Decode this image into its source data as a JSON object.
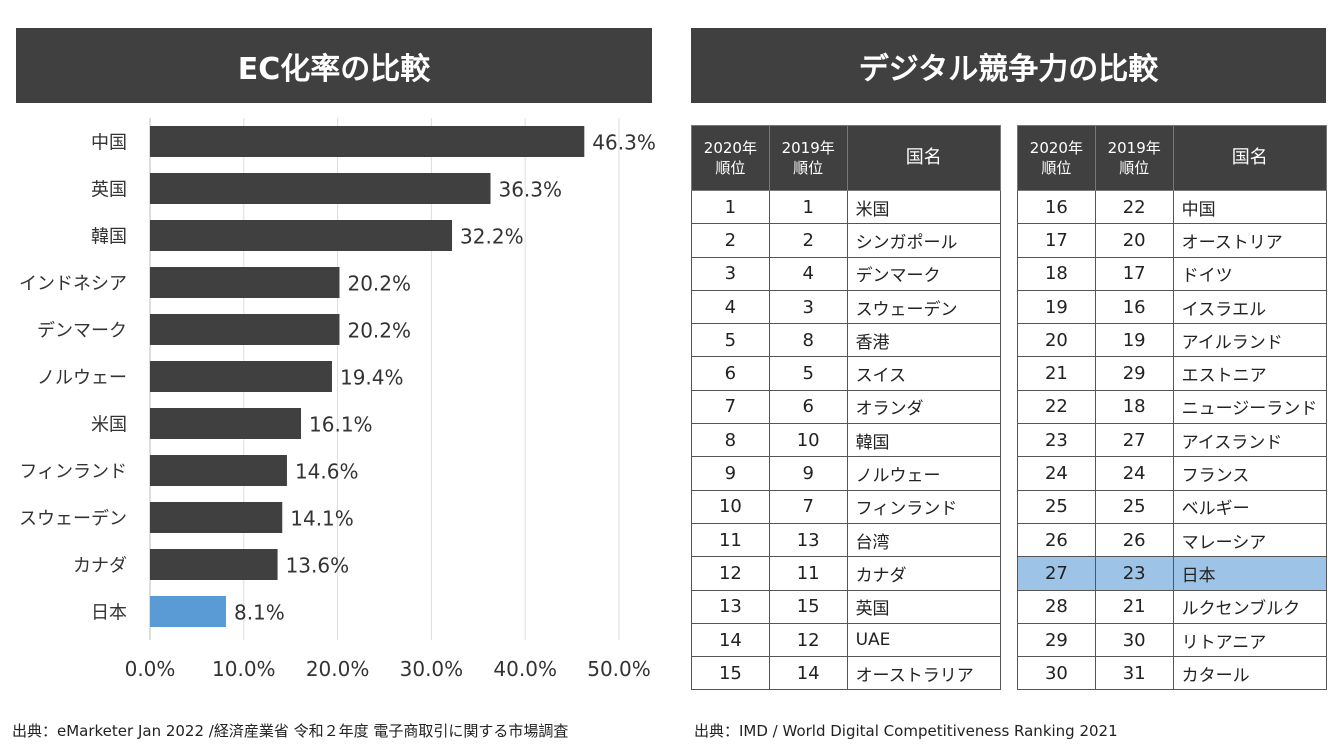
{
  "left_title": "EC化率の比較",
  "right_title": "デジタル競争力の比較",
  "chart_data": {
    "type": "bar",
    "orientation": "horizontal",
    "title": "EC化率の比較",
    "categories": [
      "中国",
      "英国",
      "韓国",
      "インドネシア",
      "デンマーク",
      "ノルウェー",
      "米国",
      "フィンランド",
      "スウェーデン",
      "カナダ",
      "日本"
    ],
    "values": [
      46.3,
      36.3,
      32.2,
      20.2,
      20.2,
      19.4,
      16.1,
      14.6,
      14.1,
      13.6,
      8.1
    ],
    "labels": [
      "46.3%",
      "36.3%",
      "32.2%",
      "20.2%",
      "20.2%",
      "19.4%",
      "16.1%",
      "14.6%",
      "14.1%",
      "13.6%",
      "8.1%"
    ],
    "xlim": [
      0,
      50
    ],
    "xticks": [
      "0.0%",
      "10.0%",
      "20.0%",
      "30.0%",
      "40.0%",
      "50.0%"
    ],
    "grid": true,
    "bar_color": "#404040",
    "highlight_color": "#5b9bd5",
    "highlight": "日本"
  },
  "table_headers": [
    "2020年\n順位",
    "2019年\n順位",
    "国名"
  ],
  "table_left": [
    [
      1,
      1,
      "米国"
    ],
    [
      2,
      2,
      "シンガポール"
    ],
    [
      3,
      4,
      "デンマーク"
    ],
    [
      4,
      3,
      "スウェーデン"
    ],
    [
      5,
      8,
      "香港"
    ],
    [
      6,
      5,
      "スイス"
    ],
    [
      7,
      6,
      "オランダ"
    ],
    [
      8,
      10,
      "韓国"
    ],
    [
      9,
      9,
      "ノルウェー"
    ],
    [
      10,
      7,
      "フィンランド"
    ],
    [
      11,
      13,
      "台湾"
    ],
    [
      12,
      11,
      "カナダ"
    ],
    [
      13,
      15,
      "英国"
    ],
    [
      14,
      12,
      "UAE"
    ],
    [
      15,
      14,
      "オーストラリア"
    ]
  ],
  "table_right": [
    [
      16,
      22,
      "中国"
    ],
    [
      17,
      20,
      "オーストリア"
    ],
    [
      18,
      17,
      "ドイツ"
    ],
    [
      19,
      16,
      "イスラエル"
    ],
    [
      20,
      19,
      "アイルランド"
    ],
    [
      21,
      29,
      "エストニア"
    ],
    [
      22,
      18,
      "ニュージーランド"
    ],
    [
      23,
      27,
      "アイスランド"
    ],
    [
      24,
      24,
      "フランス"
    ],
    [
      25,
      25,
      "ベルギー"
    ],
    [
      26,
      26,
      "マレーシア"
    ],
    [
      27,
      23,
      "日本"
    ],
    [
      28,
      21,
      "ルクセンブルク"
    ],
    [
      29,
      30,
      "リトアニア"
    ],
    [
      30,
      31,
      "カタール"
    ]
  ],
  "highlight_row": "日本",
  "highlight_color": "#9dc3e6",
  "source_left": "出典：eMarketer Jan 2022 /経済産業省 令和２年度 電子商取引に関する市場調査",
  "source_right": "出典：IMD / World Digital Competitiveness Ranking 2021"
}
